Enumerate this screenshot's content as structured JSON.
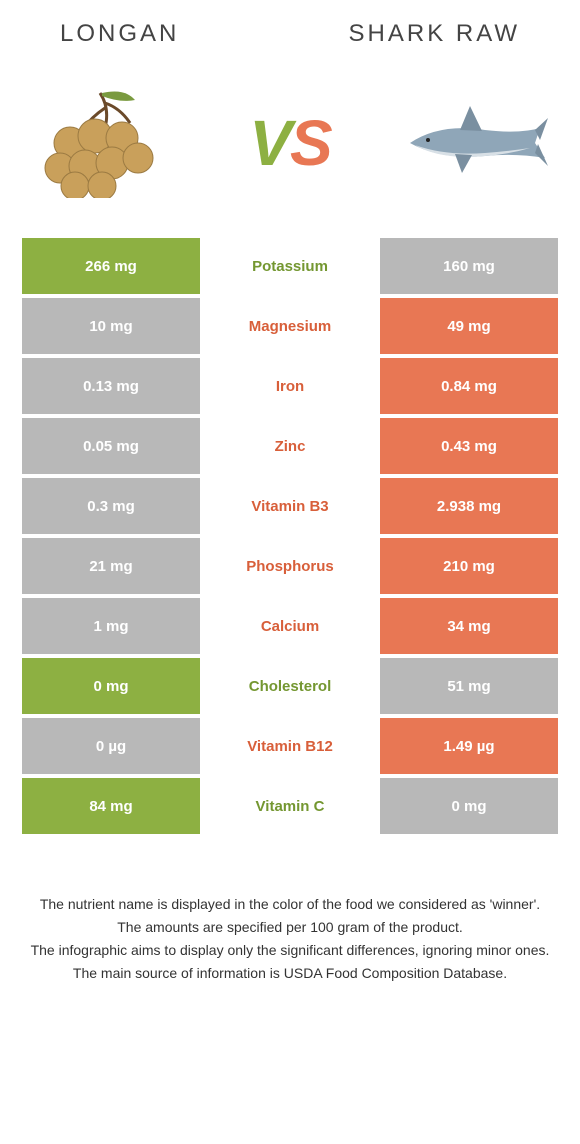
{
  "header": {
    "left": "LONGAN",
    "right": "SHARK RAW"
  },
  "vs": {
    "v": "V",
    "s": "S"
  },
  "colors": {
    "green": "#8db042",
    "orange": "#e87754",
    "grey": "#b8b8b8",
    "text_green": "#749731",
    "text_orange": "#d85f3a",
    "text_grey": "#777777"
  },
  "rows": [
    {
      "nutrient": "Potassium",
      "left": "266 mg",
      "right": "160 mg",
      "winner": "left"
    },
    {
      "nutrient": "Magnesium",
      "left": "10 mg",
      "right": "49 mg",
      "winner": "right"
    },
    {
      "nutrient": "Iron",
      "left": "0.13 mg",
      "right": "0.84 mg",
      "winner": "right"
    },
    {
      "nutrient": "Zinc",
      "left": "0.05 mg",
      "right": "0.43 mg",
      "winner": "right"
    },
    {
      "nutrient": "Vitamin B3",
      "left": "0.3 mg",
      "right": "2.938 mg",
      "winner": "right"
    },
    {
      "nutrient": "Phosphorus",
      "left": "21 mg",
      "right": "210 mg",
      "winner": "right"
    },
    {
      "nutrient": "Calcium",
      "left": "1 mg",
      "right": "34 mg",
      "winner": "right"
    },
    {
      "nutrient": "Cholesterol",
      "left": "0 mg",
      "right": "51 mg",
      "winner": "left"
    },
    {
      "nutrient": "Vitamin B12",
      "left": "0 µg",
      "right": "1.49 µg",
      "winner": "right"
    },
    {
      "nutrient": "Vitamin C",
      "left": "84 mg",
      "right": "0 mg",
      "winner": "left"
    }
  ],
  "footer": {
    "line1": "The nutrient name is displayed in the color of the food we considered as 'winner'.",
    "line2": "The amounts are specified per 100 gram of the product.",
    "line3": "The infographic aims to display only the significant differences, ignoring minor ones.",
    "line4": "The main source of information is USDA Food Composition Database."
  }
}
